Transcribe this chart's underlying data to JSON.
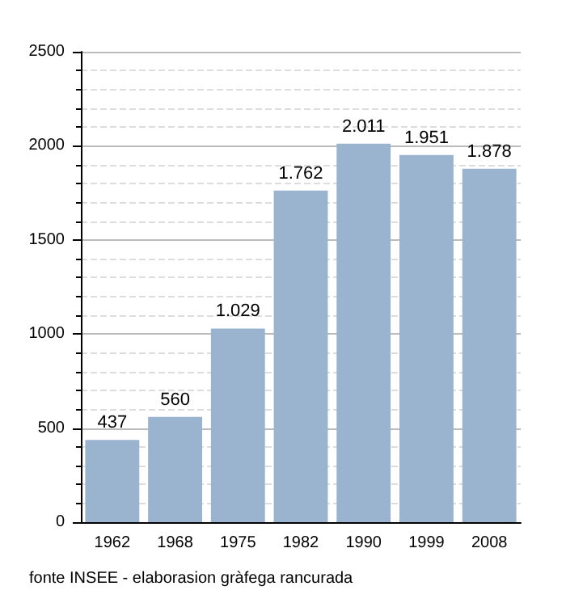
{
  "chart_data": {
    "type": "bar",
    "categories": [
      "1962",
      "1968",
      "1975",
      "1982",
      "1990",
      "1999",
      "2008"
    ],
    "values": [
      437,
      560,
      1029,
      1762,
      2011,
      1951,
      1878
    ],
    "value_labels": [
      "437",
      "560",
      "1.029",
      "1.762",
      "2.011",
      "1.951",
      "1.878"
    ],
    "color": "#9ab3cf",
    "ylim": [
      0,
      2500
    ],
    "yticks": [
      0,
      500,
      1000,
      1500,
      2000,
      2500
    ],
    "grid": "y",
    "annotations": [
      "fonte INSEE - elaborasion gràfega rancurada"
    ]
  }
}
